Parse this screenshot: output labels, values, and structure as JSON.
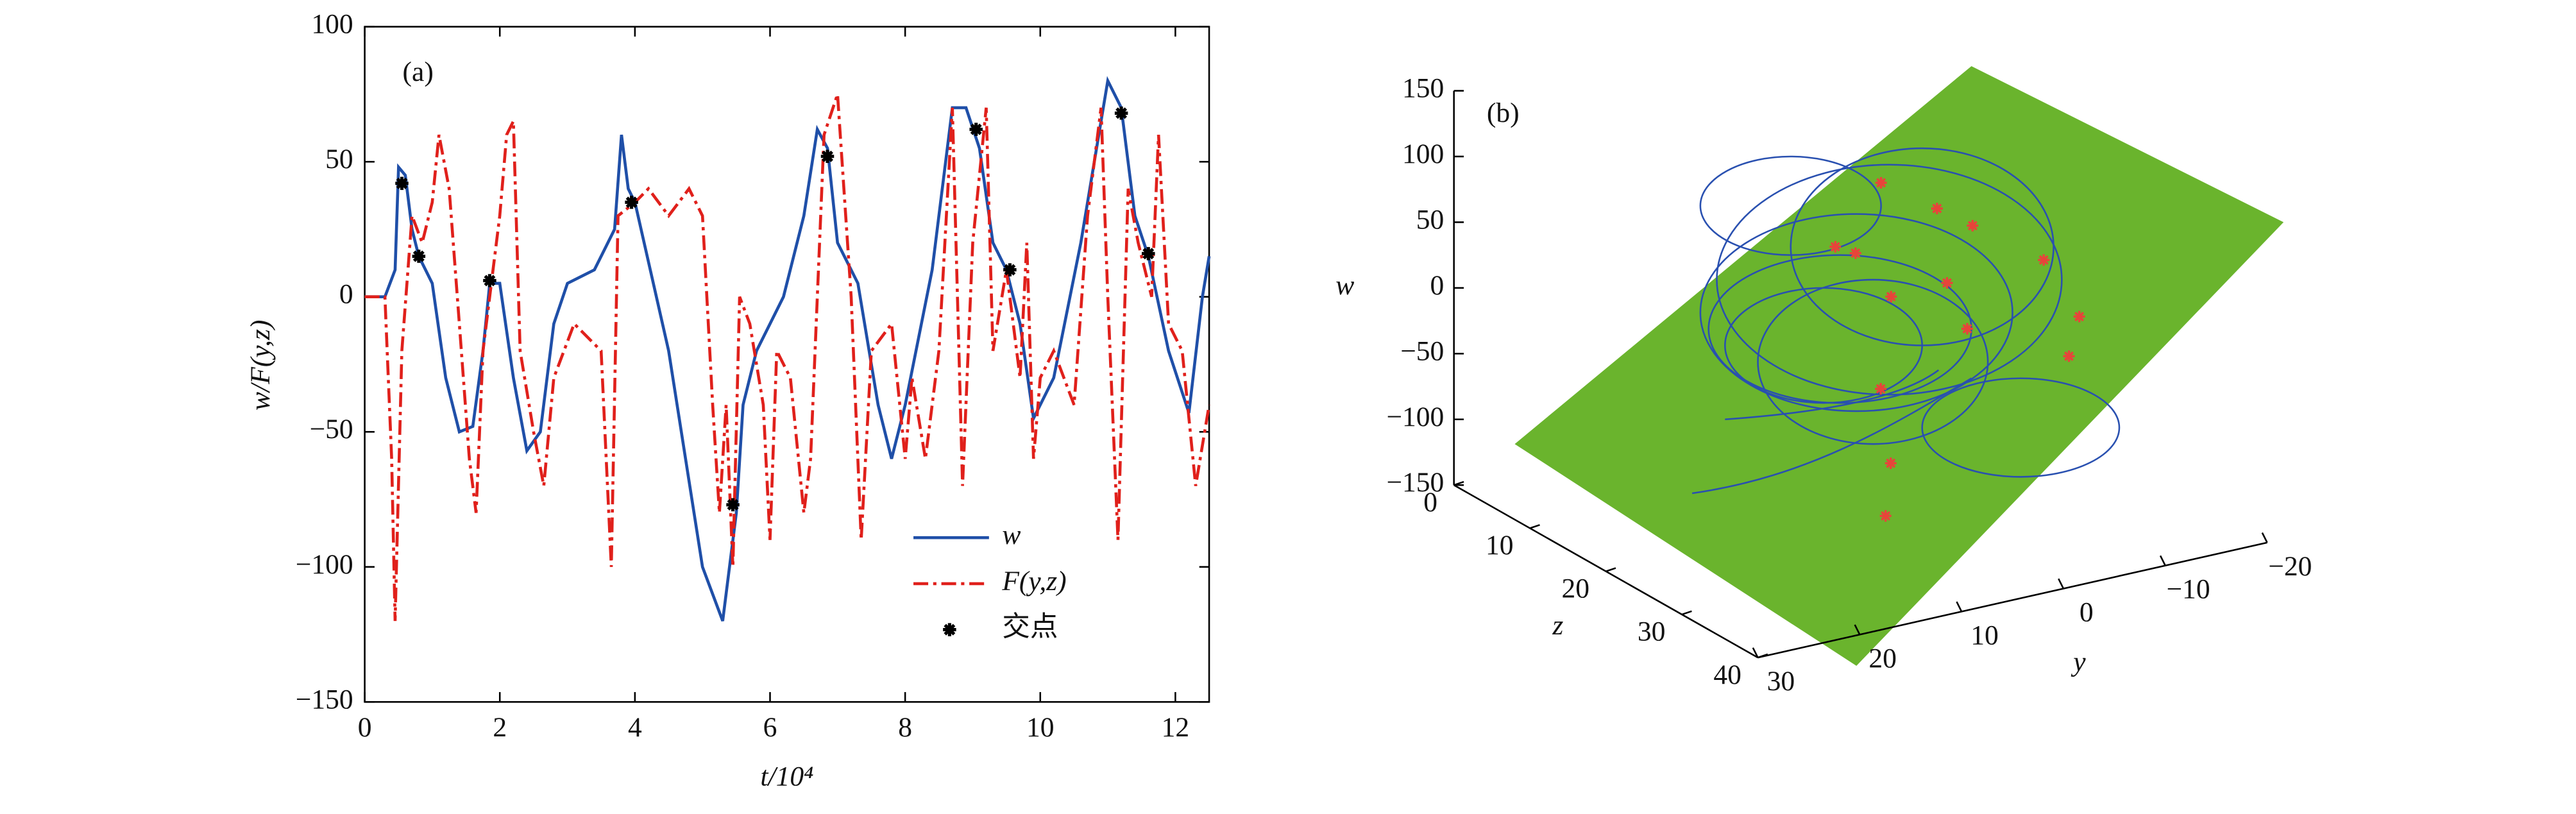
{
  "chart_data": [
    {
      "type": "line",
      "annotation": "(a)",
      "x_label": "t/10⁴",
      "y_label": "w/F(y,z)",
      "xlim": [
        0,
        12.5
      ],
      "xticks": [
        0,
        2,
        4,
        6,
        8,
        10,
        12
      ],
      "ylim": [
        -150,
        100
      ],
      "yticks": [
        -150,
        -100,
        -50,
        0,
        50,
        100
      ],
      "series": [
        {
          "name": "w",
          "color": "#1f4fa8",
          "x": [
            0,
            0.3,
            0.45,
            0.5,
            0.6,
            0.7,
            0.8,
            1.0,
            1.2,
            1.4,
            1.6,
            1.75,
            1.85,
            2.0,
            2.2,
            2.4,
            2.6,
            2.8,
            3.0,
            3.4,
            3.7,
            3.8,
            3.9,
            4.0,
            4.5,
            5.0,
            5.3,
            5.5,
            5.6,
            5.8,
            6.2,
            6.5,
            6.7,
            6.85,
            7.0,
            7.3,
            7.6,
            7.8,
            8.0,
            8.4,
            8.7,
            8.9,
            9.1,
            9.3,
            9.5,
            9.7,
            9.9,
            10.2,
            10.6,
            11.0,
            11.2,
            11.4,
            11.6,
            11.9,
            12.2,
            12.4,
            12.5
          ],
          "values": [
            0,
            0,
            10,
            48,
            45,
            25,
            15,
            5,
            -30,
            -50,
            -48,
            -20,
            5,
            5,
            -30,
            -57,
            -50,
            -10,
            5,
            10,
            25,
            60,
            40,
            35,
            -20,
            -100,
            -120,
            -80,
            -40,
            -20,
            0,
            30,
            62,
            55,
            20,
            5,
            -40,
            -60,
            -40,
            10,
            70,
            70,
            55,
            20,
            10,
            -10,
            -45,
            -30,
            20,
            80,
            70,
            30,
            15,
            -20,
            -43,
            0,
            15
          ]
        },
        {
          "name": "F(y,z)",
          "color": "#e0201b",
          "x": [
            0,
            0.3,
            0.4,
            0.45,
            0.55,
            0.7,
            0.85,
            1.0,
            1.1,
            1.25,
            1.4,
            1.55,
            1.65,
            1.75,
            1.9,
            2.0,
            2.1,
            2.2,
            2.3,
            2.5,
            2.65,
            2.8,
            3.1,
            3.5,
            3.65,
            3.75,
            4.0,
            4.2,
            4.5,
            4.8,
            5.0,
            5.15,
            5.25,
            5.35,
            5.45,
            5.55,
            5.7,
            5.9,
            6.0,
            6.1,
            6.3,
            6.5,
            6.6,
            6.8,
            7.0,
            7.2,
            7.35,
            7.5,
            7.8,
            8.0,
            8.1,
            8.3,
            8.5,
            8.7,
            8.85,
            9.0,
            9.2,
            9.3,
            9.5,
            9.7,
            9.8,
            9.9,
            10.0,
            10.2,
            10.5,
            10.7,
            10.9,
            11.0,
            11.15,
            11.3,
            11.45,
            11.65,
            11.75,
            11.9,
            12.1,
            12.3,
            12.5
          ],
          "values": [
            0,
            0,
            -60,
            -120,
            -20,
            30,
            20,
            35,
            60,
            40,
            -10,
            -60,
            -80,
            -20,
            10,
            30,
            60,
            65,
            -20,
            -50,
            -70,
            -30,
            -10,
            -20,
            -100,
            30,
            35,
            40,
            30,
            40,
            30,
            -40,
            -80,
            -40,
            -100,
            0,
            -10,
            -40,
            -90,
            -20,
            -30,
            -80,
            -60,
            60,
            75,
            0,
            -90,
            -20,
            -10,
            -60,
            -30,
            -60,
            -20,
            70,
            -70,
            20,
            70,
            -20,
            10,
            -30,
            20,
            -60,
            -30,
            -20,
            -40,
            30,
            70,
            0,
            -90,
            40,
            20,
            0,
            60,
            -10,
            -20,
            -70,
            -40
          ]
        },
        {
          "name": "交点",
          "type": "scatter",
          "color": "#000000",
          "x": [
            0.55,
            0.8,
            1.85,
            3.95,
            5.45,
            6.85,
            9.05,
            9.55,
            11.2,
            11.6
          ],
          "values": [
            42,
            15,
            6,
            35,
            -77,
            52,
            62,
            10,
            68,
            16
          ]
        }
      ]
    },
    {
      "type": "scatter3d",
      "annotation": "(b)",
      "w_label": "w",
      "z_label": "z",
      "y_label": "y",
      "wlim": [
        -150,
        150
      ],
      "wticks": [
        -150,
        -100,
        -50,
        0,
        50,
        100,
        150
      ],
      "zlim": [
        0,
        40
      ],
      "zticks": [
        0,
        10,
        20,
        30,
        40
      ],
      "ylim": [
        -20,
        30
      ],
      "yticks": [
        -20,
        -10,
        0,
        10,
        20,
        30
      ],
      "plane_color": "#6ab42d",
      "color": "#e8443a",
      "points": {
        "y": [
          -6,
          -10,
          -4,
          -2,
          0,
          2,
          -8,
          4,
          -12,
          6,
          8,
          10,
          3,
          -1
        ],
        "z": [
          20,
          24,
          18,
          22,
          16,
          20,
          30,
          18,
          26,
          24,
          28,
          30,
          14,
          26
        ],
        "w": [
          50,
          30,
          60,
          20,
          80,
          10,
          -20,
          40,
          -10,
          -40,
          -80,
          -110,
          30,
          0
        ]
      }
    }
  ]
}
